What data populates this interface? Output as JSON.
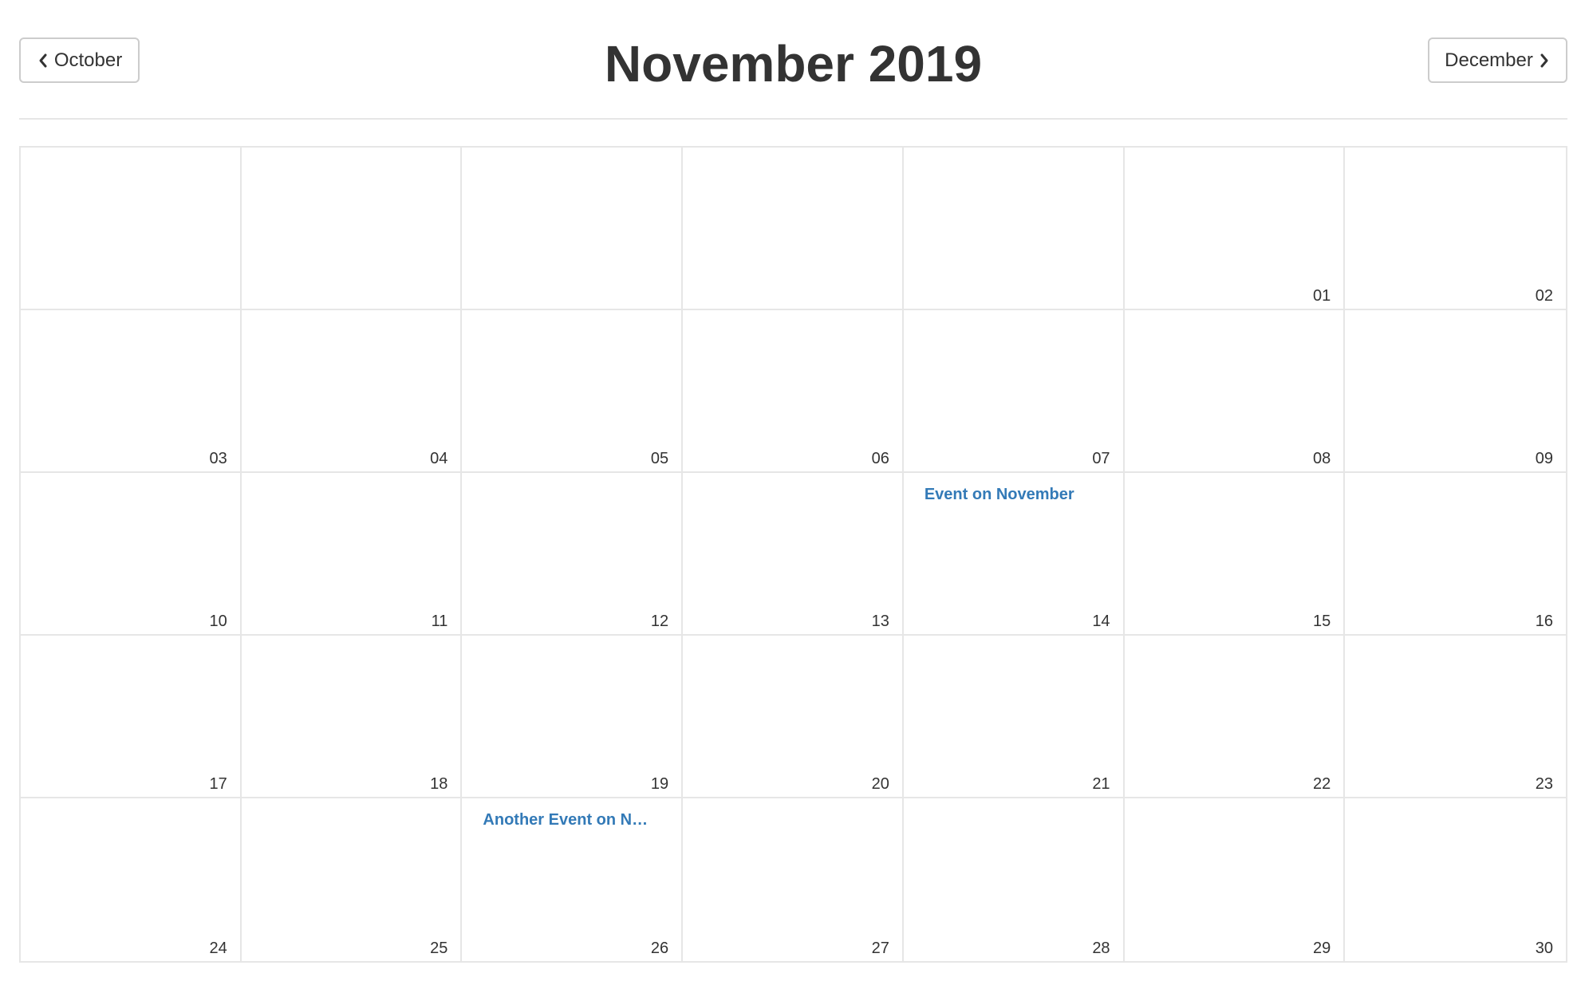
{
  "header": {
    "title": "November 2019",
    "prev_label": "October",
    "next_label": "December"
  },
  "calendar": {
    "cells": [
      {
        "day": ""
      },
      {
        "day": ""
      },
      {
        "day": ""
      },
      {
        "day": ""
      },
      {
        "day": ""
      },
      {
        "day": "01"
      },
      {
        "day": "02"
      },
      {
        "day": "03"
      },
      {
        "day": "04"
      },
      {
        "day": "05"
      },
      {
        "day": "06"
      },
      {
        "day": "07"
      },
      {
        "day": "08"
      },
      {
        "day": "09"
      },
      {
        "day": "10"
      },
      {
        "day": "11"
      },
      {
        "day": "12"
      },
      {
        "day": "13"
      },
      {
        "day": "14",
        "event": "Event on November"
      },
      {
        "day": "15"
      },
      {
        "day": "16"
      },
      {
        "day": "17"
      },
      {
        "day": "18"
      },
      {
        "day": "19"
      },
      {
        "day": "20"
      },
      {
        "day": "21"
      },
      {
        "day": "22"
      },
      {
        "day": "23"
      },
      {
        "day": "24"
      },
      {
        "day": "25"
      },
      {
        "day": "26",
        "event": "Another Event on November"
      },
      {
        "day": "27"
      },
      {
        "day": "28"
      },
      {
        "day": "29"
      },
      {
        "day": "30"
      }
    ]
  },
  "colors": {
    "event_link": "#337ab7",
    "grid_border": "#e6e6e6",
    "text": "#333333"
  },
  "icons": {
    "prev": "chevron-left-icon",
    "next": "chevron-right-icon"
  }
}
